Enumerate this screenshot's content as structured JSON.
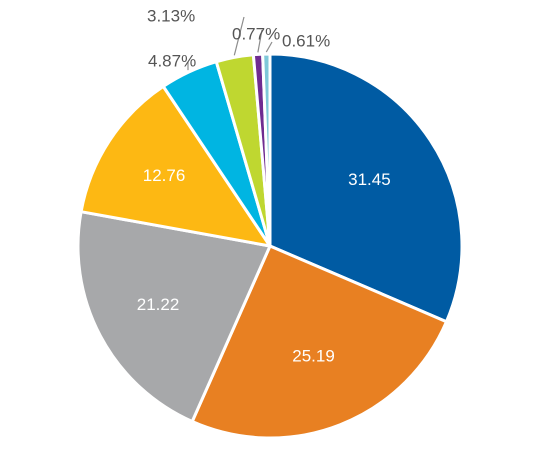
{
  "chart_data": {
    "type": "pie",
    "title": "",
    "slices": [
      {
        "label": "31.45",
        "value": 31.45,
        "color": "#005BA3"
      },
      {
        "label": "25.19",
        "value": 25.19,
        "color": "#E88022"
      },
      {
        "label": "21.22",
        "value": 21.22,
        "color": "#A7A8AA"
      },
      {
        "label": "12.76",
        "value": 12.76,
        "color": "#FDB813"
      },
      {
        "label": "4.87%",
        "value": 4.87,
        "color": "#00B5E2"
      },
      {
        "label": "3.13%",
        "value": 3.13,
        "color": "#BFD730"
      },
      {
        "label": "0.77%",
        "value": 0.77,
        "color": "#6F2C91"
      },
      {
        "label": "0.61%",
        "value": 0.61,
        "color": "#7FC8D9"
      }
    ],
    "legend": "none"
  }
}
